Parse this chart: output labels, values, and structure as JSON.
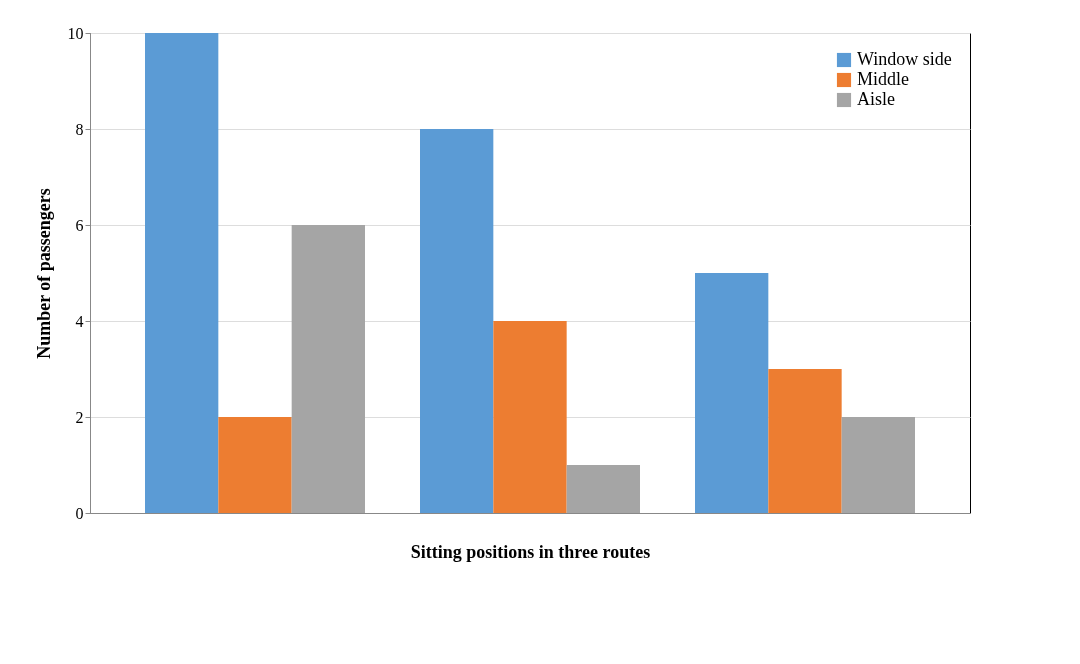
{
  "chart_data": {
    "type": "bar",
    "xlabel": "Sitting positions in three routes",
    "ylabel": "Number of passengers",
    "categories": [
      null,
      null,
      null
    ],
    "series": [
      {
        "name": "Window side",
        "color": "#5b9bd5",
        "values": [
          10,
          8,
          5
        ]
      },
      {
        "name": "Middle",
        "color": "#ed7d31",
        "values": [
          2,
          4,
          3
        ]
      },
      {
        "name": "Aisle",
        "color": "#a5a5a5",
        "values": [
          6,
          1,
          2
        ]
      }
    ],
    "ylim": [
      0,
      10
    ],
    "yticks": [
      0,
      2,
      4,
      6,
      8,
      10
    ],
    "grid": "y",
    "legend": "top right"
  }
}
